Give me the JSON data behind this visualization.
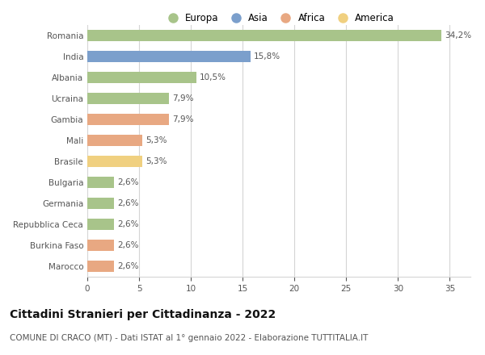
{
  "countries": [
    "Romania",
    "India",
    "Albania",
    "Ucraina",
    "Gambia",
    "Mali",
    "Brasile",
    "Bulgaria",
    "Germania",
    "Repubblica Ceca",
    "Burkina Faso",
    "Marocco"
  ],
  "values": [
    34.2,
    15.8,
    10.5,
    7.9,
    7.9,
    5.3,
    5.3,
    2.6,
    2.6,
    2.6,
    2.6,
    2.6
  ],
  "labels": [
    "34,2%",
    "15,8%",
    "10,5%",
    "7,9%",
    "7,9%",
    "5,3%",
    "5,3%",
    "2,6%",
    "2,6%",
    "2,6%",
    "2,6%",
    "2,6%"
  ],
  "continents": [
    "Europa",
    "Asia",
    "Europa",
    "Europa",
    "Africa",
    "Africa",
    "America",
    "Europa",
    "Europa",
    "Europa",
    "Africa",
    "Africa"
  ],
  "colors": {
    "Europa": "#a8c48a",
    "Asia": "#7b9fcc",
    "Africa": "#e8a882",
    "America": "#f0d080"
  },
  "legend_order": [
    "Europa",
    "Asia",
    "Africa",
    "America"
  ],
  "xlim": [
    0,
    37
  ],
  "xticks": [
    0,
    5,
    10,
    15,
    20,
    25,
    30,
    35
  ],
  "title": "Cittadini Stranieri per Cittadinanza - 2022",
  "subtitle": "COMUNE DI CRACO (MT) - Dati ISTAT al 1° gennaio 2022 - Elaborazione TUTTITALIA.IT",
  "bg_color": "#ffffff",
  "grid_color": "#d5d5d5",
  "bar_height": 0.55,
  "title_fontsize": 10,
  "subtitle_fontsize": 7.5,
  "label_fontsize": 7.5,
  "tick_fontsize": 7.5,
  "legend_fontsize": 8.5
}
